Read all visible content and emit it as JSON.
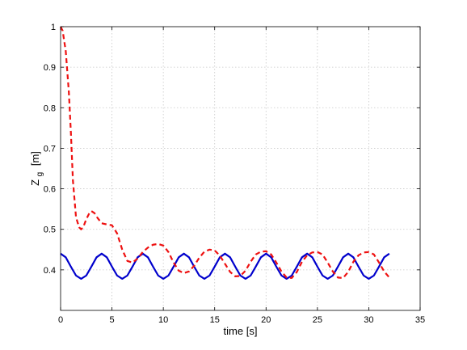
{
  "chart_data": {
    "type": "line",
    "xlabel": "time [s]",
    "ylabel_main": "Z",
    "ylabel_sub": "g",
    "ylabel_unit": "[m]",
    "xlim": [
      0,
      35
    ],
    "ylim": [
      0.3,
      1.0
    ],
    "xticks": [
      0,
      5,
      10,
      15,
      20,
      25,
      30,
      35
    ],
    "yticks": [
      0.4,
      0.5,
      0.6,
      0.7,
      0.8,
      0.9,
      1.0
    ],
    "xtick_labels": [
      "0",
      "5",
      "10",
      "15",
      "20",
      "25",
      "30",
      "35"
    ],
    "ytick_labels": [
      "0.4",
      "0.5",
      "0.6",
      "0.7",
      "0.8",
      "0.9",
      "1"
    ],
    "grid": true,
    "series": [
      {
        "style": "solid",
        "color": "#0000cc",
        "x": [
          0,
          0.5,
          1.0,
          1.5,
          2.0,
          2.5,
          3.0,
          3.5,
          4.0,
          4.5,
          5.0,
          5.5,
          6.0,
          6.5,
          7.0,
          7.5,
          8.0,
          8.5,
          9.0,
          9.5,
          10.0,
          10.5,
          11.0,
          11.5,
          12.0,
          12.5,
          13.0,
          13.5,
          14.0,
          14.5,
          15.0,
          15.5,
          16.0,
          16.5,
          17.0,
          17.5,
          18.0,
          18.5,
          19.0,
          19.5,
          20.0,
          20.5,
          21.0,
          21.5,
          22.0,
          22.5,
          23.0,
          23.5,
          24.0,
          24.5,
          25.0,
          25.5,
          26.0,
          26.5,
          27.0,
          27.5,
          28.0,
          28.5,
          29.0,
          29.5,
          30.0,
          30.5,
          31.0,
          31.5,
          32.0
        ],
        "y": [
          0.44,
          0.431,
          0.408,
          0.386,
          0.378,
          0.386,
          0.408,
          0.431,
          0.44,
          0.431,
          0.408,
          0.386,
          0.378,
          0.386,
          0.408,
          0.431,
          0.44,
          0.431,
          0.408,
          0.386,
          0.378,
          0.386,
          0.408,
          0.431,
          0.44,
          0.431,
          0.408,
          0.386,
          0.378,
          0.386,
          0.408,
          0.431,
          0.44,
          0.431,
          0.408,
          0.386,
          0.378,
          0.386,
          0.408,
          0.431,
          0.44,
          0.431,
          0.408,
          0.386,
          0.378,
          0.386,
          0.408,
          0.431,
          0.44,
          0.431,
          0.408,
          0.386,
          0.378,
          0.386,
          0.408,
          0.431,
          0.44,
          0.431,
          0.408,
          0.386,
          0.378,
          0.386,
          0.408,
          0.431,
          0.44
        ]
      },
      {
        "style": "dashed",
        "color": "#ee1111",
        "x": [
          0,
          0.2,
          0.5,
          0.8,
          1.0,
          1.2,
          1.5,
          1.8,
          2.0,
          2.2,
          2.5,
          2.8,
          3.0,
          3.3,
          3.6,
          4.0,
          4.5,
          5.0,
          5.5,
          6.0,
          6.5,
          7.0,
          7.5,
          8.0,
          8.5,
          9.0,
          9.5,
          10.0,
          10.5,
          11.0,
          11.5,
          12.0,
          12.5,
          13.0,
          13.5,
          14.0,
          14.5,
          15.0,
          15.5,
          16.0,
          16.5,
          17.0,
          17.5,
          18.0,
          18.5,
          19.0,
          19.5,
          20.0,
          20.5,
          21.0,
          21.5,
          22.0,
          22.5,
          23.0,
          23.5,
          24.0,
          24.5,
          25.0,
          25.5,
          26.0,
          26.5,
          27.0,
          27.5,
          28.0,
          28.5,
          29.0,
          29.5,
          30.0,
          30.5,
          31.0,
          31.5,
          32.0
        ],
        "y": [
          1.0,
          0.99,
          0.94,
          0.84,
          0.74,
          0.62,
          0.53,
          0.505,
          0.5,
          0.505,
          0.525,
          0.54,
          0.545,
          0.54,
          0.528,
          0.515,
          0.512,
          0.51,
          0.49,
          0.45,
          0.422,
          0.418,
          0.428,
          0.444,
          0.455,
          0.462,
          0.464,
          0.46,
          0.444,
          0.418,
          0.398,
          0.392,
          0.396,
          0.41,
          0.43,
          0.445,
          0.45,
          0.448,
          0.435,
          0.415,
          0.395,
          0.384,
          0.385,
          0.398,
          0.42,
          0.438,
          0.445,
          0.446,
          0.438,
          0.418,
          0.396,
          0.381,
          0.38,
          0.395,
          0.42,
          0.436,
          0.443,
          0.444,
          0.438,
          0.418,
          0.396,
          0.381,
          0.38,
          0.395,
          0.42,
          0.436,
          0.443,
          0.444,
          0.438,
          0.418,
          0.396,
          0.381
        ]
      }
    ]
  }
}
